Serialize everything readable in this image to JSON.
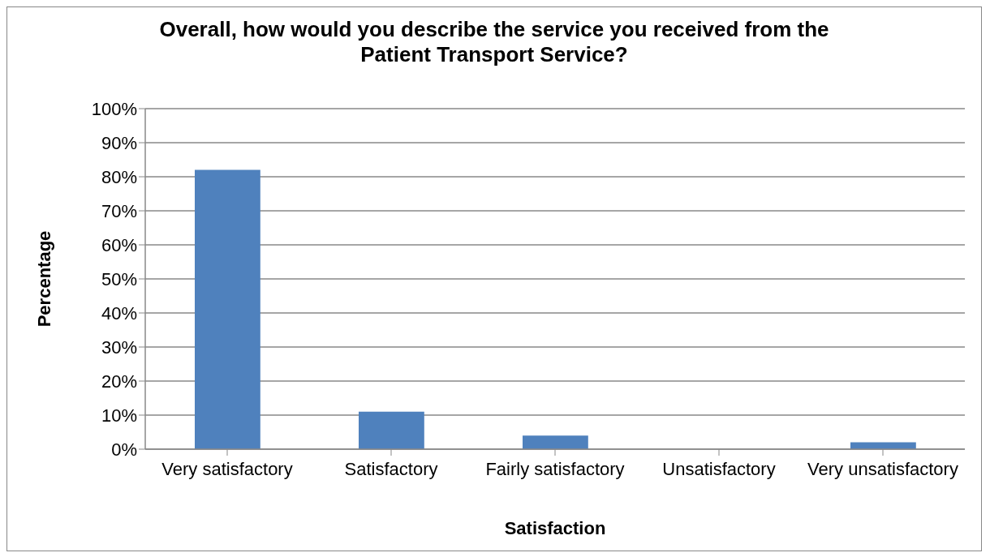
{
  "chart_data": {
    "type": "bar",
    "title": "Overall, how would you describe the service you received from the Patient Transport Service?",
    "xlabel": "Satisfaction",
    "ylabel": "Percentage",
    "categories": [
      "Very satisfactory",
      "Satisfactory",
      "Fairly satisfactory",
      "Unsatisfactory",
      "Very unsatisfactory"
    ],
    "values": [
      82,
      11,
      4,
      0,
      2
    ],
    "color": "#4f81bd",
    "ylim": [
      0,
      100
    ],
    "yticks": [
      {
        "value": 0,
        "label": "0%"
      },
      {
        "value": 10,
        "label": "10%"
      },
      {
        "value": 20,
        "label": "20%"
      },
      {
        "value": 30,
        "label": "30%"
      },
      {
        "value": 40,
        "label": "40%"
      },
      {
        "value": 50,
        "label": "50%"
      },
      {
        "value": 60,
        "label": "60%"
      },
      {
        "value": 70,
        "label": "70%"
      },
      {
        "value": 80,
        "label": "80%"
      },
      {
        "value": 90,
        "label": "90%"
      },
      {
        "value": 100,
        "label": "100%"
      }
    ],
    "grid": "y",
    "legend": false
  }
}
